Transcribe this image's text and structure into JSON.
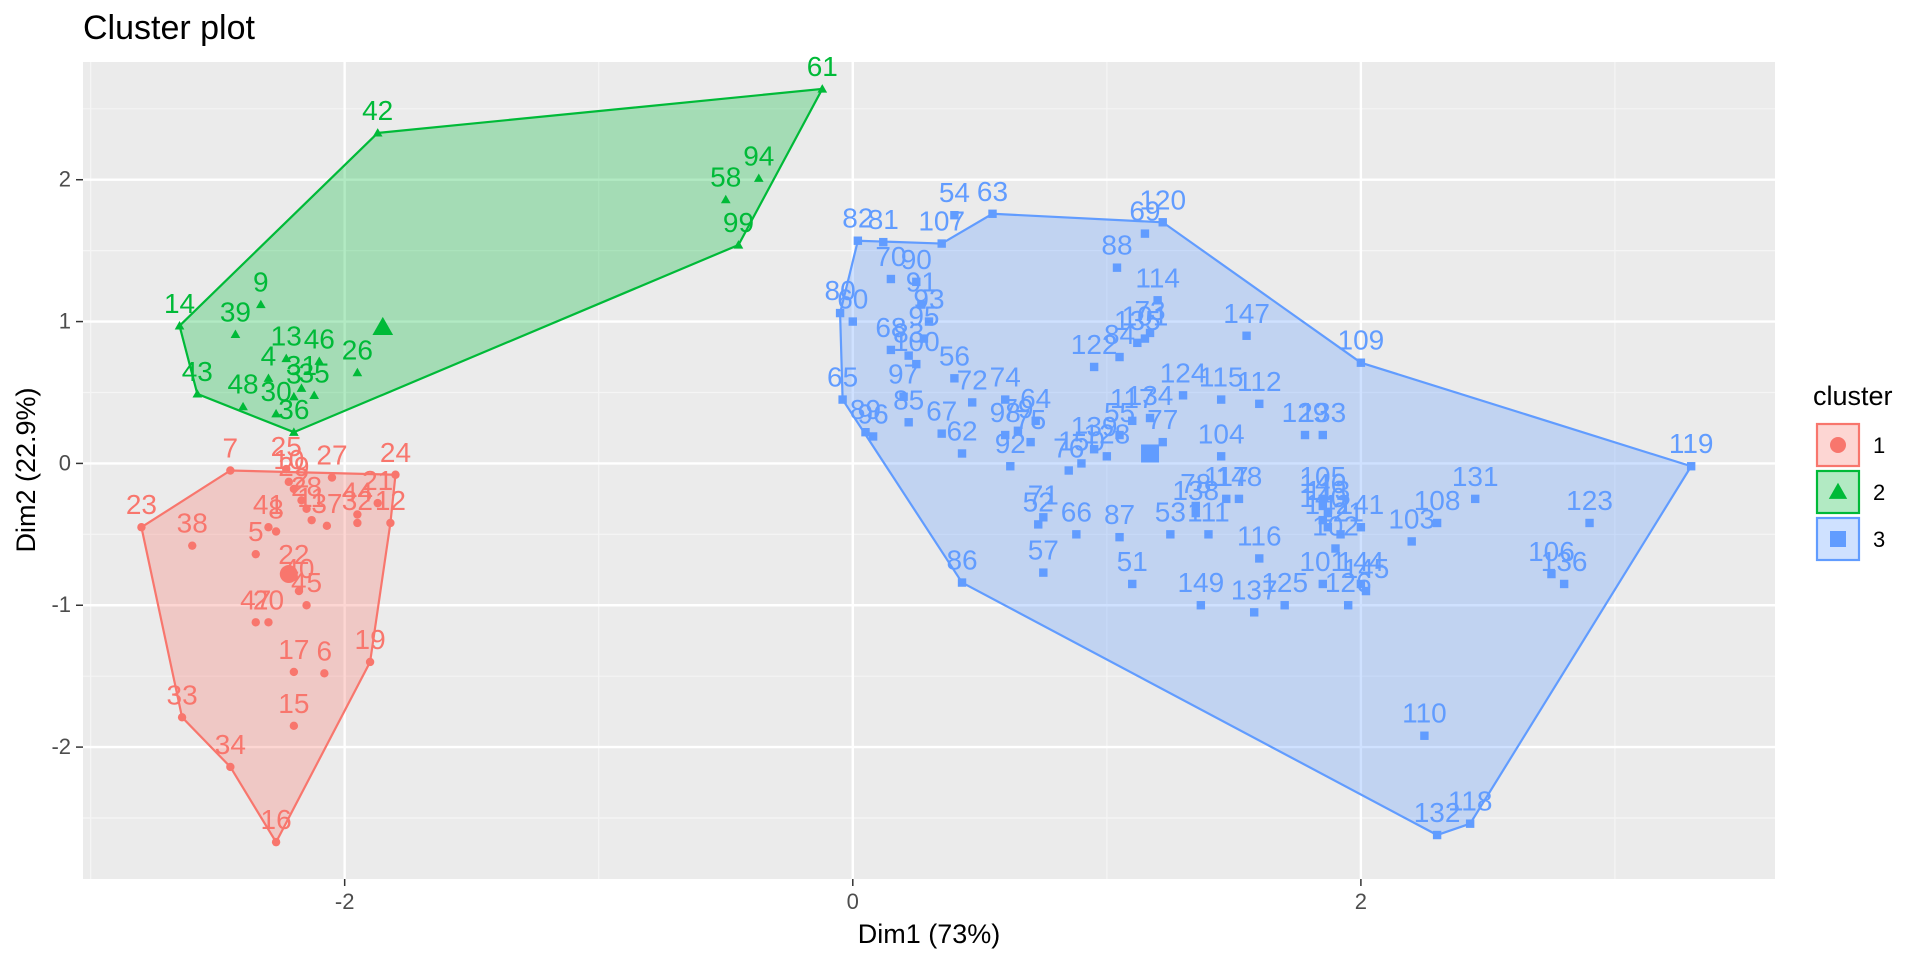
{
  "chart_data": {
    "type": "scatter",
    "title": "Cluster plot",
    "xlabel": "Dim1 (73%)",
    "ylabel": "Dim2 (22.9%)",
    "xlim": [
      -3.03,
      3.63
    ],
    "ylim": [
      -2.93,
      2.83
    ],
    "xticks": [
      -2,
      0,
      2
    ],
    "yticks": [
      -2,
      -1,
      0,
      1,
      2
    ],
    "grid": true,
    "legend": {
      "title": "cluster",
      "position": "right"
    },
    "series": [
      {
        "name": "1",
        "color": "#F8766D",
        "marker": "circle",
        "centroid": [
          -2.22,
          -0.78
        ],
        "hull": [
          "23",
          "7",
          "24",
          "12",
          "19",
          "16",
          "34",
          "33"
        ],
        "points": [
          {
            "id": "7",
            "x": -2.45,
            "y": -0.05
          },
          {
            "id": "23",
            "x": -2.8,
            "y": -0.45
          },
          {
            "id": "24",
            "x": -1.8,
            "y": -0.08
          },
          {
            "id": "12",
            "x": -1.82,
            "y": -0.42
          },
          {
            "id": "38",
            "x": -2.6,
            "y": -0.58
          },
          {
            "id": "5",
            "x": -2.35,
            "y": -0.64
          },
          {
            "id": "25",
            "x": -2.23,
            "y": -0.04
          },
          {
            "id": "27",
            "x": -2.05,
            "y": -0.1
          },
          {
            "id": "29",
            "x": -2.2,
            "y": -0.18
          },
          {
            "id": "10",
            "x": -2.22,
            "y": -0.13
          },
          {
            "id": "2",
            "x": -2.17,
            "y": -0.26
          },
          {
            "id": "28",
            "x": -2.15,
            "y": -0.32
          },
          {
            "id": "41",
            "x": -2.3,
            "y": -0.45
          },
          {
            "id": "8",
            "x": -2.27,
            "y": -0.48
          },
          {
            "id": "11",
            "x": -2.13,
            "y": -0.4
          },
          {
            "id": "37",
            "x": -2.07,
            "y": -0.44
          },
          {
            "id": "44",
            "x": -1.95,
            "y": -0.36
          },
          {
            "id": "21",
            "x": -1.87,
            "y": -0.28
          },
          {
            "id": "32",
            "x": -1.95,
            "y": -0.42
          },
          {
            "id": "22",
            "x": -2.2,
            "y": -0.8
          },
          {
            "id": "40",
            "x": -2.18,
            "y": -0.9
          },
          {
            "id": "45",
            "x": -2.15,
            "y": -1.0
          },
          {
            "id": "47",
            "x": -2.35,
            "y": -1.12
          },
          {
            "id": "20",
            "x": -2.3,
            "y": -1.12
          },
          {
            "id": "17",
            "x": -2.2,
            "y": -1.47
          },
          {
            "id": "6",
            "x": -2.08,
            "y": -1.48
          },
          {
            "id": "19",
            "x": -1.9,
            "y": -1.4
          },
          {
            "id": "15",
            "x": -2.2,
            "y": -1.85
          },
          {
            "id": "33",
            "x": -2.64,
            "y": -1.79
          },
          {
            "id": "34",
            "x": -2.45,
            "y": -2.14
          },
          {
            "id": "16",
            "x": -2.27,
            "y": -2.67
          }
        ]
      },
      {
        "name": "2",
        "color": "#00BA38",
        "marker": "triangle",
        "centroid": [
          -1.85,
          0.96
        ],
        "hull": [
          "14",
          "42",
          "61",
          "99",
          "36",
          "43"
        ],
        "points": [
          {
            "id": "61",
            "x": -0.12,
            "y": 2.64
          },
          {
            "id": "42",
            "x": -1.87,
            "y": 2.33
          },
          {
            "id": "94",
            "x": -0.37,
            "y": 2.01
          },
          {
            "id": "58",
            "x": -0.5,
            "y": 1.86
          },
          {
            "id": "99",
            "x": -0.45,
            "y": 1.54
          },
          {
            "id": "9",
            "x": -2.33,
            "y": 1.12
          },
          {
            "id": "14",
            "x": -2.65,
            "y": 0.97
          },
          {
            "id": "39",
            "x": -2.43,
            "y": 0.91
          },
          {
            "id": "13",
            "x": -2.23,
            "y": 0.74
          },
          {
            "id": "46",
            "x": -2.1,
            "y": 0.72
          },
          {
            "id": "26",
            "x": -1.95,
            "y": 0.64
          },
          {
            "id": "4",
            "x": -2.3,
            "y": 0.6
          },
          {
            "id": "31",
            "x": -2.17,
            "y": 0.53
          },
          {
            "id": "35",
            "x": -2.12,
            "y": 0.48
          },
          {
            "id": "3",
            "x": -2.2,
            "y": 0.47
          },
          {
            "id": "43",
            "x": -2.58,
            "y": 0.49
          },
          {
            "id": "48",
            "x": -2.4,
            "y": 0.4
          },
          {
            "id": "30",
            "x": -2.27,
            "y": 0.35
          },
          {
            "id": "36",
            "x": -2.2,
            "y": 0.22
          }
        ]
      },
      {
        "name": "3",
        "color": "#619CFF",
        "marker": "square",
        "centroid": [
          1.17,
          0.07
        ],
        "hull": [
          "82",
          "107",
          "63",
          "120",
          "109",
          "119",
          "118",
          "132",
          "86",
          "65",
          "80"
        ],
        "points": [
          {
            "id": "63",
            "x": 0.55,
            "y": 1.76
          },
          {
            "id": "54",
            "x": 0.4,
            "y": 1.75
          },
          {
            "id": "107",
            "x": 0.35,
            "y": 1.55
          },
          {
            "id": "81",
            "x": 0.12,
            "y": 1.56
          },
          {
            "id": "82",
            "x": 0.02,
            "y": 1.57
          },
          {
            "id": "120",
            "x": 1.22,
            "y": 1.7
          },
          {
            "id": "69",
            "x": 1.15,
            "y": 1.62
          },
          {
            "id": "88",
            "x": 1.04,
            "y": 1.38
          },
          {
            "id": "70",
            "x": 0.15,
            "y": 1.3
          },
          {
            "id": "90",
            "x": 0.25,
            "y": 1.28
          },
          {
            "id": "91",
            "x": 0.27,
            "y": 1.12
          },
          {
            "id": "93",
            "x": 0.3,
            "y": 1.0
          },
          {
            "id": "80",
            "x": -0.05,
            "y": 1.06
          },
          {
            "id": "60",
            "x": 0.0,
            "y": 1.0
          },
          {
            "id": "114",
            "x": 1.2,
            "y": 1.15
          },
          {
            "id": "73",
            "x": 1.17,
            "y": 0.92
          },
          {
            "id": "135",
            "x": 1.12,
            "y": 0.85
          },
          {
            "id": "147",
            "x": 1.55,
            "y": 0.9
          },
          {
            "id": "109",
            "x": 2.0,
            "y": 0.71
          },
          {
            "id": "68",
            "x": 0.15,
            "y": 0.8
          },
          {
            "id": "83",
            "x": 0.22,
            "y": 0.76
          },
          {
            "id": "95",
            "x": 0.28,
            "y": 0.88
          },
          {
            "id": "100",
            "x": 0.25,
            "y": 0.7
          },
          {
            "id": "56",
            "x": 0.4,
            "y": 0.6
          },
          {
            "id": "122",
            "x": 0.95,
            "y": 0.68
          },
          {
            "id": "84",
            "x": 1.05,
            "y": 0.75
          },
          {
            "id": "101",
            "x": 1.15,
            "y": 0.88
          },
          {
            "id": "124",
            "x": 1.3,
            "y": 0.48
          },
          {
            "id": "115",
            "x": 1.45,
            "y": 0.45
          },
          {
            "id": "112",
            "x": 1.6,
            "y": 0.42
          },
          {
            "id": "65",
            "x": -0.04,
            "y": 0.45
          },
          {
            "id": "97",
            "x": 0.2,
            "y": 0.47
          },
          {
            "id": "72",
            "x": 0.47,
            "y": 0.43
          },
          {
            "id": "74",
            "x": 0.6,
            "y": 0.45
          },
          {
            "id": "89",
            "x": 0.05,
            "y": 0.22
          },
          {
            "id": "96",
            "x": 0.08,
            "y": 0.19
          },
          {
            "id": "85",
            "x": 0.22,
            "y": 0.29
          },
          {
            "id": "67",
            "x": 0.35,
            "y": 0.21
          },
          {
            "id": "62",
            "x": 0.43,
            "y": 0.07
          },
          {
            "id": "98",
            "x": 0.6,
            "y": 0.2
          },
          {
            "id": "79",
            "x": 0.65,
            "y": 0.23
          },
          {
            "id": "64",
            "x": 0.72,
            "y": 0.3
          },
          {
            "id": "75",
            "x": 0.7,
            "y": 0.15
          },
          {
            "id": "92",
            "x": 0.62,
            "y": -0.02
          },
          {
            "id": "55",
            "x": 1.05,
            "y": 0.2
          },
          {
            "id": "117",
            "x": 1.1,
            "y": 0.3
          },
          {
            "id": "134",
            "x": 1.17,
            "y": 0.32
          },
          {
            "id": "77",
            "x": 1.22,
            "y": 0.15
          },
          {
            "id": "128",
            "x": 1.0,
            "y": 0.05
          },
          {
            "id": "150",
            "x": 0.9,
            "y": 0.0
          },
          {
            "id": "139",
            "x": 0.95,
            "y": 0.1
          },
          {
            "id": "104",
            "x": 1.45,
            "y": 0.05
          },
          {
            "id": "129",
            "x": 1.78,
            "y": 0.2
          },
          {
            "id": "133",
            "x": 1.85,
            "y": 0.2
          },
          {
            "id": "76",
            "x": 0.85,
            "y": -0.05
          },
          {
            "id": "71",
            "x": 0.75,
            "y": -0.38
          },
          {
            "id": "52",
            "x": 0.73,
            "y": -0.43
          },
          {
            "id": "66",
            "x": 0.88,
            "y": -0.5
          },
          {
            "id": "57",
            "x": 0.75,
            "y": -0.77
          },
          {
            "id": "87",
            "x": 1.05,
            "y": -0.52
          },
          {
            "id": "53",
            "x": 1.25,
            "y": -0.5
          },
          {
            "id": "78",
            "x": 1.35,
            "y": -0.3
          },
          {
            "id": "138",
            "x": 1.35,
            "y": -0.35
          },
          {
            "id": "111",
            "x": 1.4,
            "y": -0.5
          },
          {
            "id": "117b",
            "x": 1.47,
            "y": -0.25
          },
          {
            "id": "148",
            "x": 1.52,
            "y": -0.25
          },
          {
            "id": "105",
            "x": 1.85,
            "y": -0.25
          },
          {
            "id": "146",
            "x": 1.85,
            "y": -0.3
          },
          {
            "id": "113",
            "x": 1.87,
            "y": -0.35
          },
          {
            "id": "140",
            "x": 1.85,
            "y": -0.4
          },
          {
            "id": "142",
            "x": 1.87,
            "y": -0.45
          },
          {
            "id": "121",
            "x": 1.92,
            "y": -0.5
          },
          {
            "id": "141",
            "x": 2.0,
            "y": -0.45
          },
          {
            "id": "116",
            "x": 1.6,
            "y": -0.67
          },
          {
            "id": "51",
            "x": 1.1,
            "y": -0.85
          },
          {
            "id": "149",
            "x": 1.37,
            "y": -1.0
          },
          {
            "id": "137",
            "x": 1.58,
            "y": -1.05
          },
          {
            "id": "125",
            "x": 1.7,
            "y": -1.0
          },
          {
            "id": "103",
            "x": 2.2,
            "y": -0.55
          },
          {
            "id": "108",
            "x": 2.3,
            "y": -0.42
          },
          {
            "id": "131",
            "x": 2.45,
            "y": -0.25
          },
          {
            "id": "123",
            "x": 2.9,
            "y": -0.42
          },
          {
            "id": "106",
            "x": 2.75,
            "y": -0.78
          },
          {
            "id": "136",
            "x": 2.8,
            "y": -0.85
          },
          {
            "id": "101b",
            "x": 1.85,
            "y": -0.85
          },
          {
            "id": "144",
            "x": 2.0,
            "y": -0.85
          },
          {
            "id": "145",
            "x": 2.02,
            "y": -0.9
          },
          {
            "id": "126",
            "x": 1.95,
            "y": -1.0
          },
          {
            "id": "102",
            "x": 1.9,
            "y": -0.6
          },
          {
            "id": "110",
            "x": 2.25,
            "y": -1.92
          },
          {
            "id": "118",
            "x": 2.43,
            "y": -2.54
          },
          {
            "id": "132",
            "x": 2.3,
            "y": -2.62
          },
          {
            "id": "86",
            "x": 0.43,
            "y": -0.84
          },
          {
            "id": "119",
            "x": 3.3,
            "y": -0.02
          }
        ]
      }
    ]
  }
}
